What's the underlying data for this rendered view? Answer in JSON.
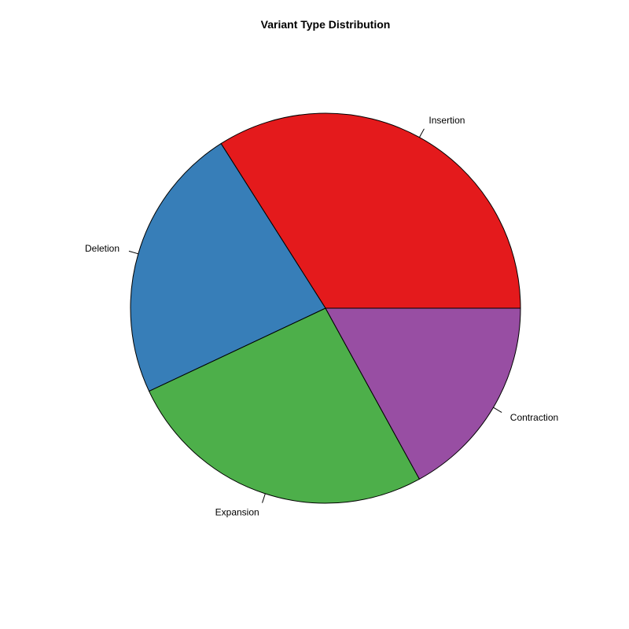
{
  "chart_data": {
    "type": "pie",
    "title": "Variant Type Distribution",
    "slices": [
      {
        "label": "Insertion",
        "value": 34,
        "color": "#E41A1C"
      },
      {
        "label": "Deletion",
        "value": 23,
        "color": "#377EB8"
      },
      {
        "label": "Expansion",
        "value": 26,
        "color": "#4DAF4A"
      },
      {
        "label": "Contraction",
        "value": 17,
        "color": "#984EA3"
      }
    ],
    "start_angle_deg": 0,
    "direction": "counterclockwise"
  }
}
